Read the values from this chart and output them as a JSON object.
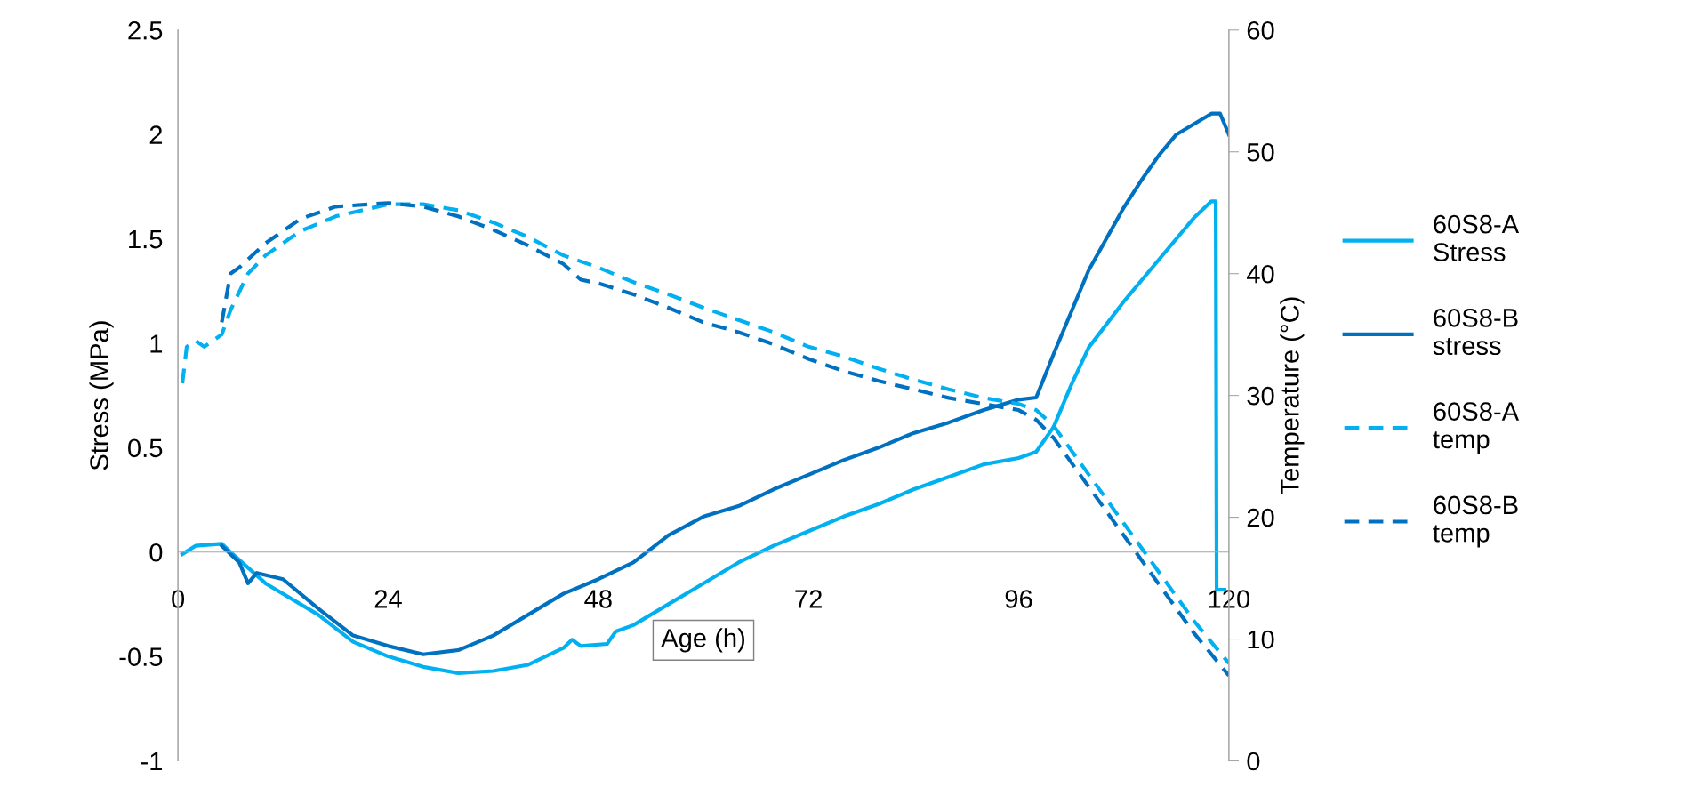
{
  "chart_data": {
    "type": "line",
    "xlabel": "Age (h)",
    "ylabel": "Stress (MPa)",
    "y2label": "Temperature (°C)",
    "xlim": [
      0,
      120
    ],
    "xticks": [
      0,
      24,
      48,
      72,
      96,
      120
    ],
    "ylim": [
      -1,
      2.5
    ],
    "yticks": [
      -1,
      -0.5,
      0,
      0.5,
      1,
      1.5,
      2,
      2.5
    ],
    "y2lim": [
      0,
      60
    ],
    "y2ticks": [
      0,
      10,
      20,
      30,
      40,
      50,
      60
    ],
    "grid": false,
    "legend": "right",
    "marker": "none",
    "series": [
      {
        "name": "60S8-A Stress",
        "color": "#00b0f0",
        "line_style": "solid",
        "x": [
          0.5,
          2,
          5,
          6,
          10,
          16,
          20,
          24,
          28,
          32,
          36,
          40,
          44,
          45,
          46,
          49,
          50,
          52,
          56,
          60,
          64,
          68,
          72,
          76,
          80,
          84,
          88,
          92,
          96,
          98,
          100,
          102,
          104,
          108,
          112,
          116,
          118,
          118.5,
          118.6,
          119.5
        ],
        "values": [
          -0.01,
          0.03,
          0.04,
          0.0,
          -0.15,
          -0.3,
          -0.43,
          -0.5,
          -0.55,
          -0.58,
          -0.57,
          -0.54,
          -0.46,
          -0.42,
          -0.45,
          -0.44,
          -0.38,
          -0.35,
          -0.25,
          -0.15,
          -0.05,
          0.03,
          0.1,
          0.17,
          0.23,
          0.3,
          0.36,
          0.42,
          0.45,
          0.48,
          0.6,
          0.8,
          0.98,
          1.2,
          1.4,
          1.6,
          1.68,
          1.68,
          -0.18,
          -0.18
        ]
      },
      {
        "name": "60S8-B stress",
        "color": "#0070c0",
        "line_style": "solid",
        "x": [
          5,
          7,
          8,
          9,
          12,
          16,
          20,
          24,
          28,
          32,
          36,
          40,
          44,
          48,
          52,
          56,
          60,
          64,
          68,
          72,
          76,
          80,
          84,
          88,
          92,
          96,
          98,
          100,
          102,
          104,
          106,
          108,
          110,
          112,
          114,
          116,
          118,
          119,
          120
        ],
        "values": [
          0.03,
          -0.05,
          -0.15,
          -0.1,
          -0.13,
          -0.27,
          -0.4,
          -0.45,
          -0.49,
          -0.47,
          -0.4,
          -0.3,
          -0.2,
          -0.13,
          -0.05,
          0.08,
          0.17,
          0.22,
          0.3,
          0.37,
          0.44,
          0.5,
          0.57,
          0.62,
          0.68,
          0.73,
          0.74,
          0.95,
          1.15,
          1.35,
          1.5,
          1.65,
          1.78,
          1.9,
          2.0,
          2.05,
          2.1,
          2.1,
          2.0
        ]
      },
      {
        "name": "60S8-A temp",
        "color": "#00b0f0",
        "line_style": "dashed",
        "axis": "y2",
        "x": [
          0.5,
          1,
          2,
          3,
          5,
          6,
          8,
          10,
          14,
          18,
          24,
          28,
          32,
          36,
          40,
          44,
          48,
          52,
          56,
          60,
          64,
          68,
          72,
          76,
          80,
          84,
          88,
          92,
          96,
          98,
          100,
          104,
          108,
          112,
          116,
          120
        ],
        "values": [
          31,
          34,
          34.5,
          34,
          35,
          37,
          40,
          41.5,
          43.5,
          44.7,
          45.7,
          45.7,
          45.2,
          44.2,
          43,
          41.5,
          40.5,
          39.3,
          38.3,
          37.2,
          36.2,
          35.2,
          34,
          33.2,
          32.2,
          31.3,
          30.5,
          29.8,
          29.3,
          28.8,
          27.5,
          23.5,
          19.5,
          15.5,
          11.5,
          8
        ]
      },
      {
        "name": "60S8-B temp",
        "color": "#0070c0",
        "line_style": "dashed",
        "axis": "y2",
        "x": [
          5,
          6,
          7,
          10,
          14,
          18,
          24,
          28,
          32,
          36,
          40,
          44,
          46,
          48,
          52,
          56,
          60,
          64,
          68,
          72,
          76,
          80,
          84,
          88,
          92,
          96,
          98,
          100,
          104,
          108,
          112,
          116,
          120
        ],
        "values": [
          36,
          40,
          40.5,
          42.5,
          44.5,
          45.5,
          45.8,
          45.5,
          44.7,
          43.6,
          42.3,
          40.8,
          39.5,
          39.2,
          38.3,
          37.2,
          36,
          35.2,
          34.2,
          33,
          32,
          31.2,
          30.5,
          29.8,
          29.3,
          28.8,
          28,
          26.5,
          22.5,
          18.5,
          14.5,
          10.5,
          7
        ]
      }
    ]
  }
}
